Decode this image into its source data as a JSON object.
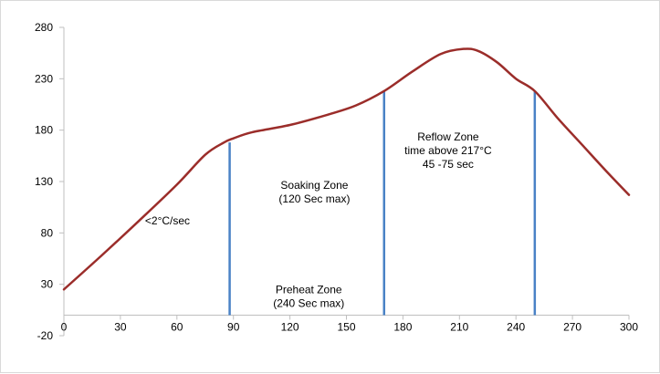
{
  "chart_data": {
    "type": "line",
    "title": "",
    "xlabel": "",
    "ylabel": "",
    "xlim": [
      0,
      300
    ],
    "ylim": [
      -20,
      280
    ],
    "x_ticks": [
      0,
      30,
      60,
      90,
      120,
      150,
      180,
      210,
      240,
      270,
      300
    ],
    "y_ticks": [
      -20,
      30,
      80,
      130,
      180,
      230,
      280
    ],
    "grid": false,
    "legend": "none",
    "series": [
      {
        "color": "#9b2d2a",
        "x": [
          0,
          20,
          40,
          60,
          75,
          85,
          90,
          100,
          120,
          140,
          155,
          170,
          185,
          200,
          212,
          220,
          230,
          240,
          250,
          262,
          275,
          288,
          300
        ],
        "y": [
          25,
          58,
          92,
          127,
          156,
          168,
          172,
          178,
          185,
          195,
          204,
          218,
          237,
          254,
          259,
          257,
          246,
          230,
          218,
          192,
          166,
          140,
          117
        ]
      }
    ],
    "vertical_lines": {
      "color": "#4a82c6",
      "items": [
        {
          "x": 88,
          "y_top": 168
        },
        {
          "x": 170,
          "y_top": 218
        },
        {
          "x": 250,
          "y_top": 218
        }
      ]
    },
    "annotations": [
      {
        "lines": [
          "<2°C/sec"
        ],
        "x": 55,
        "y": 92
      },
      {
        "lines": [
          "Soaking  Zone",
          "(120 Sec max)"
        ],
        "x": 133,
        "y": 120
      },
      {
        "lines": [
          "Preheat  Zone",
          "(240 Sec max)"
        ],
        "x": 130,
        "y": 18
      },
      {
        "lines": [
          "Reflow Zone",
          "time above 217°C",
          "45 -75 sec"
        ],
        "x": 204,
        "y": 160
      }
    ]
  }
}
